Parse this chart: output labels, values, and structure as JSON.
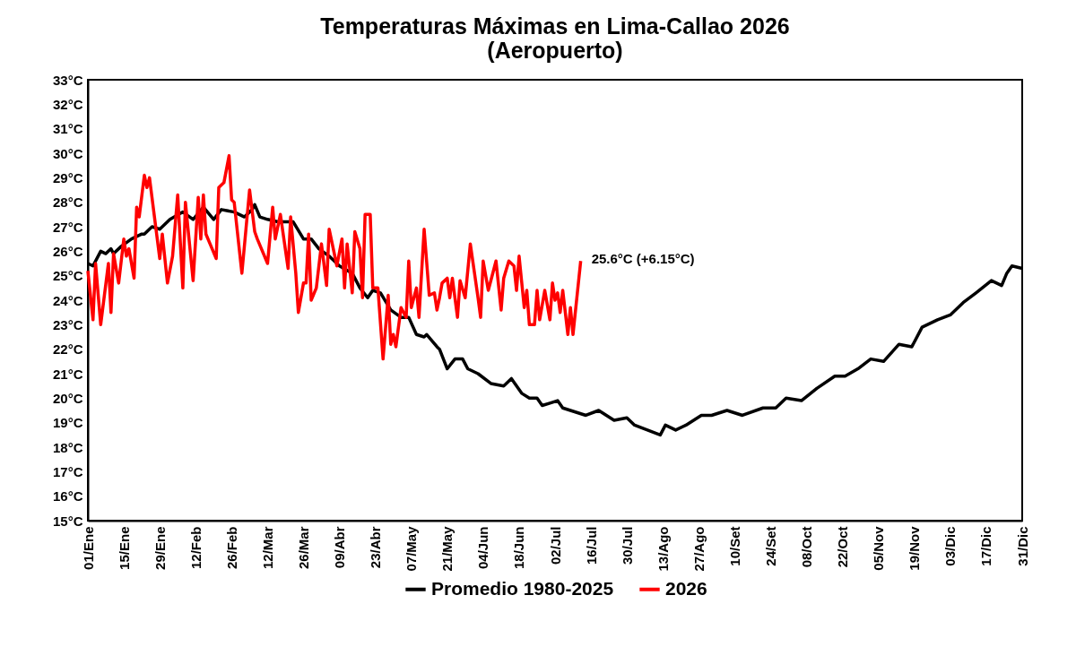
{
  "chart_data": {
    "type": "line",
    "title": "Temperaturas Máximas en Lima-Callao 2026",
    "subtitle": "(Aeropuerto)",
    "xlim": [
      "--01-01",
      "--12-31"
    ],
    "xticks": [
      {
        "value": "--01-01",
        "label": "01/Ene"
      },
      {
        "value": "--01-15",
        "label": "15/Ene"
      },
      {
        "value": "--01-29",
        "label": "29/Ene"
      },
      {
        "value": "--02-12",
        "label": "12/Feb"
      },
      {
        "value": "--02-26",
        "label": "26/Feb"
      },
      {
        "value": "--03-12",
        "label": "12/Mar"
      },
      {
        "value": "--03-26",
        "label": "26/Mar"
      },
      {
        "value": "--04-09",
        "label": "09/Abr"
      },
      {
        "value": "--04-23",
        "label": "23/Abr"
      },
      {
        "value": "--05-07",
        "label": "07/May"
      },
      {
        "value": "--05-21",
        "label": "21/May"
      },
      {
        "value": "--06-04",
        "label": "04/Jun"
      },
      {
        "value": "--06-18",
        "label": "18/Jun"
      },
      {
        "value": "--07-02",
        "label": "02/Jul"
      },
      {
        "value": "--07-16",
        "label": "16/Jul"
      },
      {
        "value": "--07-30",
        "label": "30/Jul"
      },
      {
        "value": "--08-13",
        "label": "13/Ago"
      },
      {
        "value": "--08-27",
        "label": "27/Ago"
      },
      {
        "value": "--09-10",
        "label": "10/Set"
      },
      {
        "value": "--09-24",
        "label": "24/Set"
      },
      {
        "value": "--10-08",
        "label": "08/Oct"
      },
      {
        "value": "--10-22",
        "label": "22/Oct"
      },
      {
        "value": "--11-05",
        "label": "05/Nov"
      },
      {
        "value": "--11-19",
        "label": "19/Nov"
      },
      {
        "value": "--12-03",
        "label": "03/Dic"
      },
      {
        "value": "--12-17",
        "label": "17/Dic"
      },
      {
        "value": "--12-31",
        "label": "31/Dic"
      }
    ],
    "ylim": [
      15,
      33
    ],
    "yticks": [
      {
        "value": 15,
        "label": "15°C"
      },
      {
        "value": 16,
        "label": "16°C"
      },
      {
        "value": 17,
        "label": "17°C"
      },
      {
        "value": 18,
        "label": "18°C"
      },
      {
        "value": 19,
        "label": "19°C"
      },
      {
        "value": 20,
        "label": "20°C"
      },
      {
        "value": 21,
        "label": "21°C"
      },
      {
        "value": 22,
        "label": "22°C"
      },
      {
        "value": 23,
        "label": "23°C"
      },
      {
        "value": 24,
        "label": "24°C"
      },
      {
        "value": 25,
        "label": "25°C"
      },
      {
        "value": 26,
        "label": "26°C"
      },
      {
        "value": 27,
        "label": "27°C"
      },
      {
        "value": 28,
        "label": "28°C"
      },
      {
        "value": 29,
        "label": "29°C"
      },
      {
        "value": 30,
        "label": "30°C"
      },
      {
        "value": 31,
        "label": "31°C"
      },
      {
        "value": 32,
        "label": "32°C"
      },
      {
        "value": 33,
        "label": "33°C"
      }
    ],
    "grid": false,
    "legend": "bottom",
    "line_style": "solid",
    "series": [
      {
        "name": "Promedio 1980-2025",
        "color": "#000000",
        "x": [
          "--01-01",
          "--01-03",
          "--01-06",
          "--01-08",
          "--01-10",
          "--01-11",
          "--01-14",
          "--01-18",
          "--01-22",
          "--01-23",
          "--01-26",
          "--01-29",
          "--02-02",
          "--02-07",
          "--02-11",
          "--02-15",
          "--02-19",
          "--02-22",
          "--02-27",
          "--03-03",
          "--03-06",
          "--03-07",
          "--03-09",
          "--03-12",
          "--03-16",
          "--03-22",
          "--03-26",
          "--03-29",
          "--04-01",
          "--04-05",
          "--04-09",
          "--04-14",
          "--04-17",
          "--04-20",
          "--04-22",
          "--04-25",
          "--04-29",
          "--05-03",
          "--05-06",
          "--05-09",
          "--05-12",
          "--05-13",
          "--05-17",
          "--05-18",
          "--05-21",
          "--05-24",
          "--05-27",
          "--05-29",
          "--06-02",
          "--06-07",
          "--06-12",
          "--06-15",
          "--06-19",
          "--06-22",
          "--06-25",
          "--06-27",
          "--06-30",
          "--07-03",
          "--07-05",
          "--07-08",
          "--07-14",
          "--07-19",
          "--07-25",
          "--07-30",
          "--08-02",
          "--08-07",
          "--08-12",
          "--08-14",
          "--08-18",
          "--08-22",
          "--08-28",
          "--09-01",
          "--09-07",
          "--09-13",
          "--09-21",
          "--09-26",
          "--09-30",
          "--10-06",
          "--10-12",
          "--10-19",
          "--10-23",
          "--10-28",
          "--11-02",
          "--11-07",
          "--11-13",
          "--11-18",
          "--11-22",
          "--11-28",
          "--12-03",
          "--12-08",
          "--12-13",
          "--12-19",
          "--12-23",
          "--12-25",
          "--12-27",
          "--12-31"
        ],
        "values": [
          25.5,
          25.4,
          26.0,
          25.9,
          26.1,
          25.9,
          26.2,
          26.5,
          26.7,
          26.7,
          27.0,
          26.9,
          27.3,
          27.6,
          27.3,
          27.8,
          27.3,
          27.7,
          27.6,
          27.4,
          27.7,
          27.9,
          27.4,
          27.3,
          27.2,
          27.2,
          26.5,
          26.5,
          26.1,
          25.8,
          25.4,
          25.1,
          24.5,
          24.1,
          24.4,
          24.3,
          23.6,
          23.3,
          23.3,
          22.6,
          22.5,
          22.6,
          22.1,
          22.0,
          21.2,
          21.6,
          21.6,
          21.2,
          21.0,
          20.6,
          20.5,
          20.8,
          20.2,
          20.0,
          20.0,
          19.7,
          19.8,
          19.9,
          19.6,
          19.5,
          19.3,
          19.5,
          19.1,
          19.2,
          18.9,
          18.7,
          18.5,
          18.9,
          18.7,
          18.9,
          19.3,
          19.3,
          19.5,
          19.3,
          19.6,
          19.6,
          20.0,
          19.9,
          20.4,
          20.9,
          20.9,
          21.2,
          21.6,
          21.5,
          22.2,
          22.1,
          22.9,
          23.2,
          23.4,
          23.9,
          24.3,
          24.8,
          24.6,
          25.1,
          25.4,
          25.3
        ]
      },
      {
        "name": "2026",
        "color": "#ff0000",
        "x": [
          "--01-01",
          "--01-03",
          "--01-04",
          "--01-06",
          "--01-09",
          "--01-10",
          "--01-11",
          "--01-13",
          "--01-15",
          "--01-16",
          "--01-17",
          "--01-19",
          "--01-20",
          "--01-21",
          "--01-23",
          "--01-24",
          "--01-25",
          "--01-29",
          "--01-30",
          "--02-01",
          "--02-03",
          "--02-05",
          "--02-07",
          "--02-08",
          "--02-11",
          "--02-13",
          "--02-14",
          "--02-15",
          "--02-16",
          "--02-18",
          "--02-20",
          "--02-21",
          "--02-23",
          "--02-25",
          "--02-26",
          "--02-27",
          "--03-02",
          "--03-05",
          "--03-07",
          "--03-08",
          "--03-12",
          "--03-14",
          "--03-15",
          "--03-17",
          "--03-20",
          "--03-21",
          "--03-23",
          "--03-24",
          "--03-26",
          "--03-27",
          "--03-28",
          "--03-29",
          "--03-31",
          "--04-02",
          "--04-04",
          "--04-05",
          "--04-08",
          "--04-10",
          "--04-11",
          "--04-12",
          "--04-14",
          "--04-15",
          "--04-17",
          "--04-18",
          "--04-19",
          "--04-21",
          "--04-22",
          "--04-24",
          "--04-26",
          "--04-28",
          "--04-29",
          "--04-30",
          "--05-01",
          "--05-03",
          "--05-05",
          "--05-06",
          "--05-07",
          "--05-09",
          "--05-10",
          "--05-12",
          "--05-14",
          "--05-16",
          "--05-17",
          "--05-18",
          "--05-19",
          "--05-21",
          "--05-22",
          "--05-23",
          "--05-25",
          "--05-26",
          "--05-28",
          "--05-30",
          "--06-02",
          "--06-03",
          "--06-04",
          "--06-06",
          "--06-09",
          "--06-11",
          "--06-12",
          "--06-14",
          "--06-16",
          "--06-17",
          "--06-18",
          "--06-20",
          "--06-21",
          "--06-22",
          "--06-24",
          "--06-25",
          "--06-26",
          "--06-28",
          "--06-30",
          "--07-01",
          "--07-02",
          "--07-03",
          "--07-04",
          "--07-05",
          "--07-07",
          "--07-08",
          "--07-09",
          "--07-12"
        ],
        "values": [
          25.2,
          23.2,
          25.5,
          23.0,
          25.5,
          23.5,
          25.9,
          24.7,
          26.5,
          25.8,
          26.1,
          24.9,
          27.8,
          27.4,
          29.1,
          28.6,
          29.0,
          25.7,
          26.7,
          24.7,
          25.8,
          28.3,
          24.5,
          28.0,
          24.8,
          28.2,
          26.5,
          28.3,
          26.7,
          26.2,
          25.7,
          28.6,
          28.8,
          29.9,
          28.1,
          28.0,
          25.1,
          28.5,
          26.8,
          26.5,
          25.5,
          27.8,
          26.5,
          27.5,
          25.3,
          27.4,
          25.1,
          23.5,
          24.7,
          24.7,
          26.7,
          24.0,
          24.5,
          26.3,
          24.6,
          26.9,
          25.4,
          26.5,
          24.5,
          26.3,
          24.3,
          26.8,
          26.1,
          24.1,
          27.5,
          27.5,
          24.5,
          24.5,
          21.6,
          24.2,
          22.2,
          22.6,
          22.1,
          23.7,
          23.3,
          25.6,
          23.7,
          24.5,
          23.3,
          26.9,
          24.2,
          24.3,
          23.6,
          24.1,
          24.7,
          24.9,
          24.1,
          24.9,
          23.3,
          24.8,
          24.1,
          26.3,
          24.1,
          23.3,
          25.6,
          24.4,
          25.6,
          23.6,
          24.9,
          25.6,
          25.4,
          24.4,
          25.8,
          23.7,
          24.4,
          23.0,
          23.0,
          24.4,
          23.2,
          24.4,
          23.2,
          24.7,
          24.0,
          24.3,
          23.5,
          24.4,
          22.6,
          23.7,
          22.6,
          25.6
        ]
      }
    ],
    "annotations": [
      {
        "text": "25.6°C (+6.15°C)",
        "x": "--07-12",
        "y": 25.6
      }
    ]
  }
}
